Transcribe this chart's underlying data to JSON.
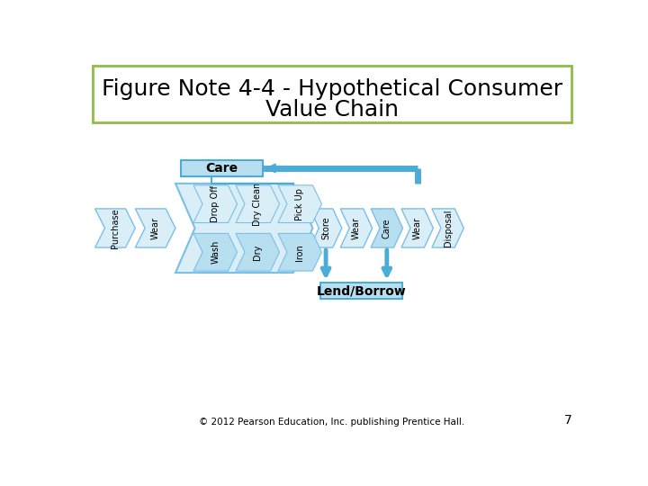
{
  "title_line1": "Figure Note 4-4 - Hypothetical Consumer",
  "title_line2": "Value Chain",
  "title_fontsize": 18,
  "bg_color": "#ffffff",
  "border_color": "#8fbc45",
  "fill_light": "#daeef8",
  "fill_medium": "#b8dff0",
  "fill_dark": "#92cce8",
  "stroke_color": "#7bbfe8",
  "stroke_dark": "#4badd6",
  "connector_color": "#4badd6",
  "care_label": "Care",
  "lend_borrow_label": "Lend/Borrow",
  "main_labels": [
    "Purchase",
    "Wear"
  ],
  "group_top": [
    "Wash",
    "Dry",
    "Iron"
  ],
  "group_bottom": [
    "Drop Off",
    "Dry Clean",
    "Pick Up"
  ],
  "after_labels": [
    "Store",
    "Wear",
    "Care",
    "Wear",
    "Disposal"
  ],
  "footer": "© 2012 Pearson Education, Inc. publishing Prentice Hall.",
  "page_num": "7"
}
